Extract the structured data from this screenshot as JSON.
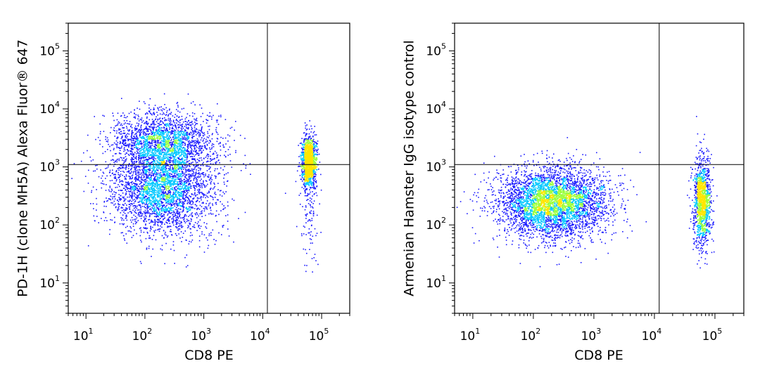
{
  "chart_data": [
    {
      "type": "scatter",
      "title": "",
      "xlabel": "CD8 PE",
      "ylabel": "PD-1H (clone MH5A) Alexa Fluor® 647",
      "x_scale": "log",
      "y_scale": "log",
      "xlim": [
        5,
        300000
      ],
      "ylim": [
        3,
        300000
      ],
      "x_ticks": [
        {
          "base": "10",
          "exp": "1"
        },
        {
          "base": "10",
          "exp": "2"
        },
        {
          "base": "10",
          "exp": "3"
        },
        {
          "base": "10",
          "exp": "4"
        },
        {
          "base": "10",
          "exp": "5"
        }
      ],
      "y_ticks": [
        {
          "base": "10",
          "exp": "1"
        },
        {
          "base": "10",
          "exp": "2"
        },
        {
          "base": "10",
          "exp": "3"
        },
        {
          "base": "10",
          "exp": "4"
        },
        {
          "base": "10",
          "exp": "5"
        }
      ],
      "gate": {
        "x": 12000,
        "y": 1100
      },
      "point_color": "#1a1aff",
      "density_colors": [
        "#00c8ff",
        "#9bff3c",
        "#ffe600"
      ],
      "populations": [
        {
          "x_center": 200,
          "y_center": 2600,
          "x_spread_decades": 0.45,
          "y_spread_decades": 0.28,
          "count": 2200
        },
        {
          "x_center": 200,
          "y_center": 400,
          "x_spread_decades": 0.45,
          "y_spread_decades": 0.38,
          "count": 3000
        },
        {
          "x_center": 60000,
          "y_center": 1300,
          "x_spread_decades": 0.06,
          "y_spread_decades": 0.2,
          "count": 1400
        },
        {
          "x_center": 60000,
          "y_center": 250,
          "x_spread_decades": 0.08,
          "y_spread_decades": 0.5,
          "count": 160
        }
      ]
    },
    {
      "type": "scatter",
      "title": "",
      "xlabel": "CD8 PE",
      "ylabel": "Armenian Hamster IgG isotype control",
      "x_scale": "log",
      "y_scale": "log",
      "xlim": [
        5,
        300000
      ],
      "ylim": [
        3,
        300000
      ],
      "x_ticks": [
        {
          "base": "10",
          "exp": "1"
        },
        {
          "base": "10",
          "exp": "2"
        },
        {
          "base": "10",
          "exp": "3"
        },
        {
          "base": "10",
          "exp": "4"
        },
        {
          "base": "10",
          "exp": "5"
        }
      ],
      "y_ticks": [
        {
          "base": "10",
          "exp": "1"
        },
        {
          "base": "10",
          "exp": "2"
        },
        {
          "base": "10",
          "exp": "3"
        },
        {
          "base": "10",
          "exp": "4"
        },
        {
          "base": "10",
          "exp": "5"
        }
      ],
      "gate": {
        "x": 12000,
        "y": 1100
      },
      "point_color": "#1a1aff",
      "density_colors": [
        "#00c8ff",
        "#9bff3c",
        "#ffe600"
      ],
      "populations": [
        {
          "x_center": 200,
          "y_center": 250,
          "x_spread_decades": 0.45,
          "y_spread_decades": 0.3,
          "count": 4200
        },
        {
          "x_center": 60000,
          "y_center": 250,
          "x_spread_decades": 0.07,
          "y_spread_decades": 0.38,
          "count": 1300
        }
      ]
    }
  ]
}
